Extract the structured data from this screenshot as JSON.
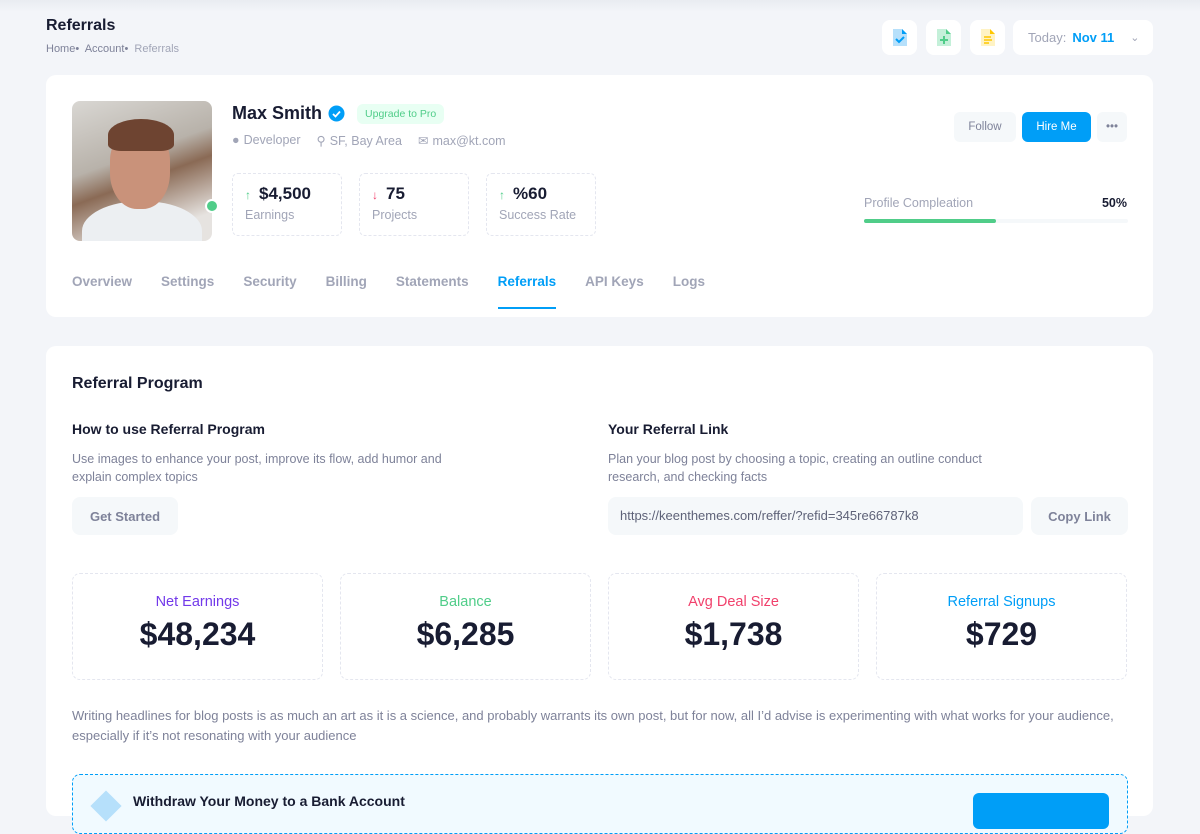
{
  "header": {
    "title": "Referrals",
    "breadcrumb": [
      "Home",
      "Account",
      "Referrals"
    ],
    "today_label": "Today:",
    "today_value": "Nov 11"
  },
  "profile": {
    "name": "Max Smith",
    "badge": "Upgrade to Pro",
    "role": "Developer",
    "location": "SF, Bay Area",
    "email": "max@kt.com",
    "stats": [
      {
        "value": "$4,500",
        "label": "Earnings",
        "trend": "up"
      },
      {
        "value": "75",
        "label": "Projects",
        "trend": "down"
      },
      {
        "value": "%60",
        "label": "Success Rate",
        "trend": "up"
      }
    ],
    "follow": "Follow",
    "hire": "Hire Me",
    "completion_label": "Profile Compleation",
    "completion_value": "50%",
    "completion_fraction": 0.5
  },
  "tabs": [
    "Overview",
    "Settings",
    "Security",
    "Billing",
    "Statements",
    "Referrals",
    "API Keys",
    "Logs"
  ],
  "active_tab": "Referrals",
  "referral": {
    "title": "Referral Program",
    "how_title": "How to use Referral Program",
    "how_text": "Use images to enhance your post, improve its flow, add humor and explain complex topics",
    "get_started": "Get Started",
    "link_title": "Your Referral Link",
    "link_text": "Plan your blog post by choosing a topic, creating an outline conduct research, and checking facts",
    "link": "https://keenthemes.com/reffer/?refid=345re66787k8",
    "copy": "Copy Link",
    "kpis": [
      {
        "label": "Net Earnings",
        "value": "$48,234",
        "color": "#7239ea"
      },
      {
        "label": "Balance",
        "value": "$6,285",
        "color": "#50cd89"
      },
      {
        "label": "Avg Deal Size",
        "value": "$1,738",
        "color": "#f1416c"
      },
      {
        "label": "Referral Signups",
        "value": "$729",
        "color": "#009ef7"
      }
    ],
    "paragraph": "Writing headlines for blog posts is as much an art as it is a science, and probably warrants its own post, but for now, all I’d advise is experimenting with what works for your audience, especially if it’s not resonating with your audience",
    "notice_title": "Withdraw Your Money to a Bank Account"
  }
}
